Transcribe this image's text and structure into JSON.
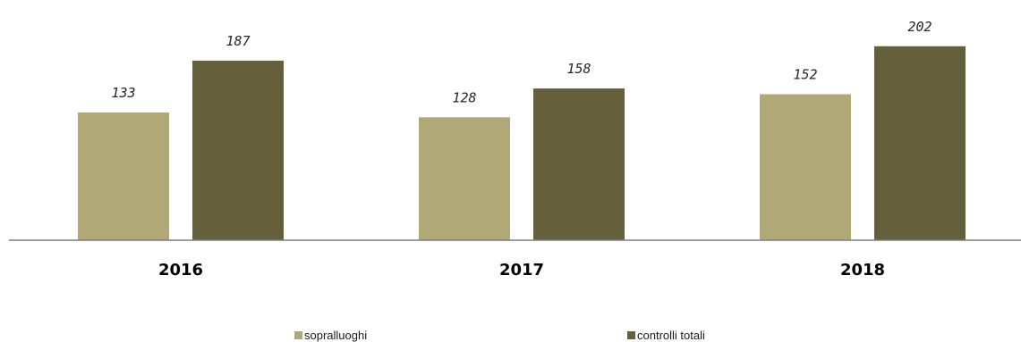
{
  "chart_data": {
    "type": "bar",
    "categories": [
      "2016",
      "2017",
      "2018"
    ],
    "series": [
      {
        "name": "sopralluoghi",
        "values": [
          133,
          128,
          152
        ],
        "color": "#b1a878"
      },
      {
        "name": "controlli totali",
        "values": [
          187,
          158,
          202
        ],
        "color": "#665f3b"
      }
    ],
    "ylim": [
      0,
      220
    ],
    "grid": false,
    "axis_color": "#7f7f7f",
    "legend": {
      "position": "bottom"
    }
  }
}
